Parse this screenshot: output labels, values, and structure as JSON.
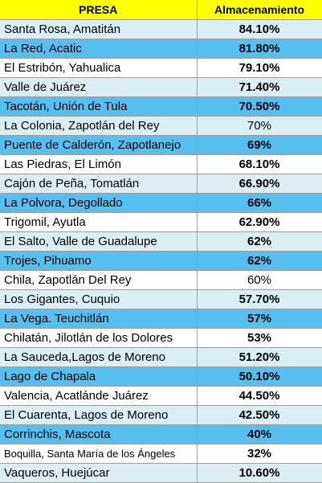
{
  "header": {
    "name": "PRESA",
    "value": "Almacenamiento"
  },
  "rows": [
    {
      "name": "Santa Rosa, Amatitán",
      "value": "84.10%",
      "bg": "light",
      "bold": true
    },
    {
      "name": "La Red, Acatic",
      "value": "81.80%",
      "bg": "blue",
      "bold": true
    },
    {
      "name": "El Estribón, Yahualica",
      "value": "79.10%",
      "bg": "white",
      "bold": true
    },
    {
      "name": "Valle de Juárez",
      "value": "71.40%",
      "bg": "light",
      "bold": true
    },
    {
      "name": "Tacotán, Unión de Tula",
      "value": "70.50%",
      "bg": "blue",
      "bold": true
    },
    {
      "name": "La Colonia, Zapotlán del Rey",
      "value": "70%",
      "bg": "light",
      "bold": false
    },
    {
      "name": "Puente de Calderón, Zapotlanejo",
      "value": "69%",
      "bg": "blue",
      "bold": true
    },
    {
      "name": "Las Piedras, El Limón",
      "value": "68.10%",
      "bg": "white",
      "bold": true
    },
    {
      "name": "Cajón de Peña, Tomatlán",
      "value": "66.90%",
      "bg": "light",
      "bold": true
    },
    {
      "name": "La Polvora, Degollado",
      "value": "66%",
      "bg": "blue",
      "bold": true
    },
    {
      "name": "Trigomil, Ayutla",
      "value": "62.90%",
      "bg": "white",
      "bold": true
    },
    {
      "name": "El Salto, Valle de Guadalupe",
      "value": "62%",
      "bg": "light",
      "bold": true
    },
    {
      "name": "Trojes, Pihuamo",
      "value": "62%",
      "bg": "blue",
      "bold": true
    },
    {
      "name": "Chila, Zapotlán Del Rey",
      "value": "60%",
      "bg": "white",
      "bold": false
    },
    {
      "name": "Los Gigantes, Cuquio",
      "value": "57.70%",
      "bg": "light",
      "bold": true
    },
    {
      "name": "La Vega. Teuchitlán",
      "value": "57%",
      "bg": "blue",
      "bold": true
    },
    {
      "name": "Chilatán, Jilotlán de los Dolores",
      "value": "53%",
      "bg": "white",
      "bold": true
    },
    {
      "name": "La Sauceda,Lagos de Moreno",
      "value": "51.20%",
      "bg": "light",
      "bold": true
    },
    {
      "name": "Lago de Chapala",
      "value": "50.10%",
      "bg": "blue",
      "bold": true
    },
    {
      "name": "Valencia, Acatlánde Juárez",
      "value": "44.50%",
      "bg": "white",
      "bold": true
    },
    {
      "name": "El Cuarenta, Lagos de Moreno",
      "value": "42.50%",
      "bg": "light",
      "bold": true
    },
    {
      "name": "Corrinchis, Mascota",
      "value": "40%",
      "bg": "blue",
      "bold": true
    },
    {
      "name": "Boquilla, Santa María de los Ángeles",
      "value": "32%",
      "bg": "white",
      "bold": true,
      "small": true
    },
    {
      "name": "Vaqueros, Huejúcar",
      "value": "10.60%",
      "bg": "light",
      "bold": true
    }
  ],
  "colors": {
    "header": "#ffff00",
    "light": "#dbeef4",
    "blue": "#56bff0",
    "white": "#ffffff",
    "grid": "#9c9c9c"
  }
}
